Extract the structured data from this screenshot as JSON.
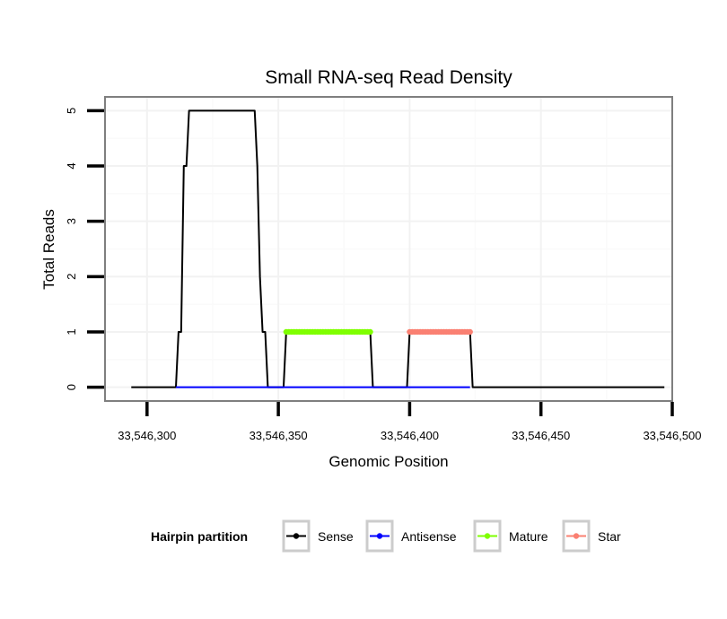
{
  "chart_data": {
    "type": "line",
    "title": "Small RNA-seq Read Density",
    "xlabel": "Genomic Position",
    "ylabel": "Total Reads",
    "xlim": [
      33546284,
      33546500
    ],
    "ylim": [
      -0.25,
      5.25
    ],
    "x_ticks": [
      33546300,
      33546350,
      33546400,
      33546450,
      33546500
    ],
    "x_tick_labels": [
      "33,546,300",
      "33,546,350",
      "33,546,400",
      "33,546,450",
      "33,546,500"
    ],
    "y_ticks": [
      0,
      1,
      2,
      3,
      4,
      5
    ],
    "y_tick_labels": [
      "0",
      "1",
      "2",
      "3",
      "4",
      "5"
    ],
    "grid": true,
    "legend": {
      "title": "Hairpin partition",
      "position": "bottom",
      "entries": [
        "Sense",
        "Antisense",
        "Mature",
        "Star"
      ]
    },
    "series": [
      {
        "name": "Sense",
        "color": "#000000",
        "markers": false,
        "x": [
          33546294,
          33546311,
          33546312,
          33546313,
          33546314,
          33546315,
          33546316,
          33546317,
          33546318,
          33546319,
          33546340,
          33546341,
          33546342,
          33546343,
          33546344,
          33546345,
          33546346,
          33546347,
          33546352,
          33546353,
          33546385,
          33546386,
          33546399,
          33546400,
          33546423,
          33546424,
          33546497
        ],
        "y": [
          0,
          0,
          1,
          1,
          4,
          4,
          5,
          5,
          5,
          5,
          5,
          5,
          4,
          2,
          1,
          1,
          0,
          0,
          0,
          1,
          1,
          0,
          0,
          1,
          1,
          0,
          0
        ]
      },
      {
        "name": "Antisense",
        "color": "#0000ff",
        "markers": false,
        "x": [
          33546311,
          33546423
        ],
        "y": [
          0,
          0
        ]
      },
      {
        "name": "Mature",
        "color": "#7fff00",
        "markers": true,
        "x": [
          33546353,
          33546354,
          33546355,
          33546356,
          33546357,
          33546358,
          33546359,
          33546360,
          33546361,
          33546362,
          33546363,
          33546364,
          33546365,
          33546366,
          33546367,
          33546368,
          33546369,
          33546370,
          33546371,
          33546372,
          33546373,
          33546374,
          33546375,
          33546376,
          33546377,
          33546378,
          33546379,
          33546380,
          33546381,
          33546382,
          33546383,
          33546384,
          33546385
        ],
        "y": [
          1,
          1,
          1,
          1,
          1,
          1,
          1,
          1,
          1,
          1,
          1,
          1,
          1,
          1,
          1,
          1,
          1,
          1,
          1,
          1,
          1,
          1,
          1,
          1,
          1,
          1,
          1,
          1,
          1,
          1,
          1,
          1,
          1
        ]
      },
      {
        "name": "Star",
        "color": "#fa8072",
        "markers": true,
        "x": [
          33546400,
          33546401,
          33546402,
          33546403,
          33546404,
          33546405,
          33546406,
          33546407,
          33546408,
          33546409,
          33546410,
          33546411,
          33546412,
          33546413,
          33546414,
          33546415,
          33546416,
          33546417,
          33546418,
          33546419,
          33546420,
          33546421,
          33546422,
          33546423
        ],
        "y": [
          1,
          1,
          1,
          1,
          1,
          1,
          1,
          1,
          1,
          1,
          1,
          1,
          1,
          1,
          1,
          1,
          1,
          1,
          1,
          1,
          1,
          1,
          1,
          1
        ]
      }
    ]
  }
}
